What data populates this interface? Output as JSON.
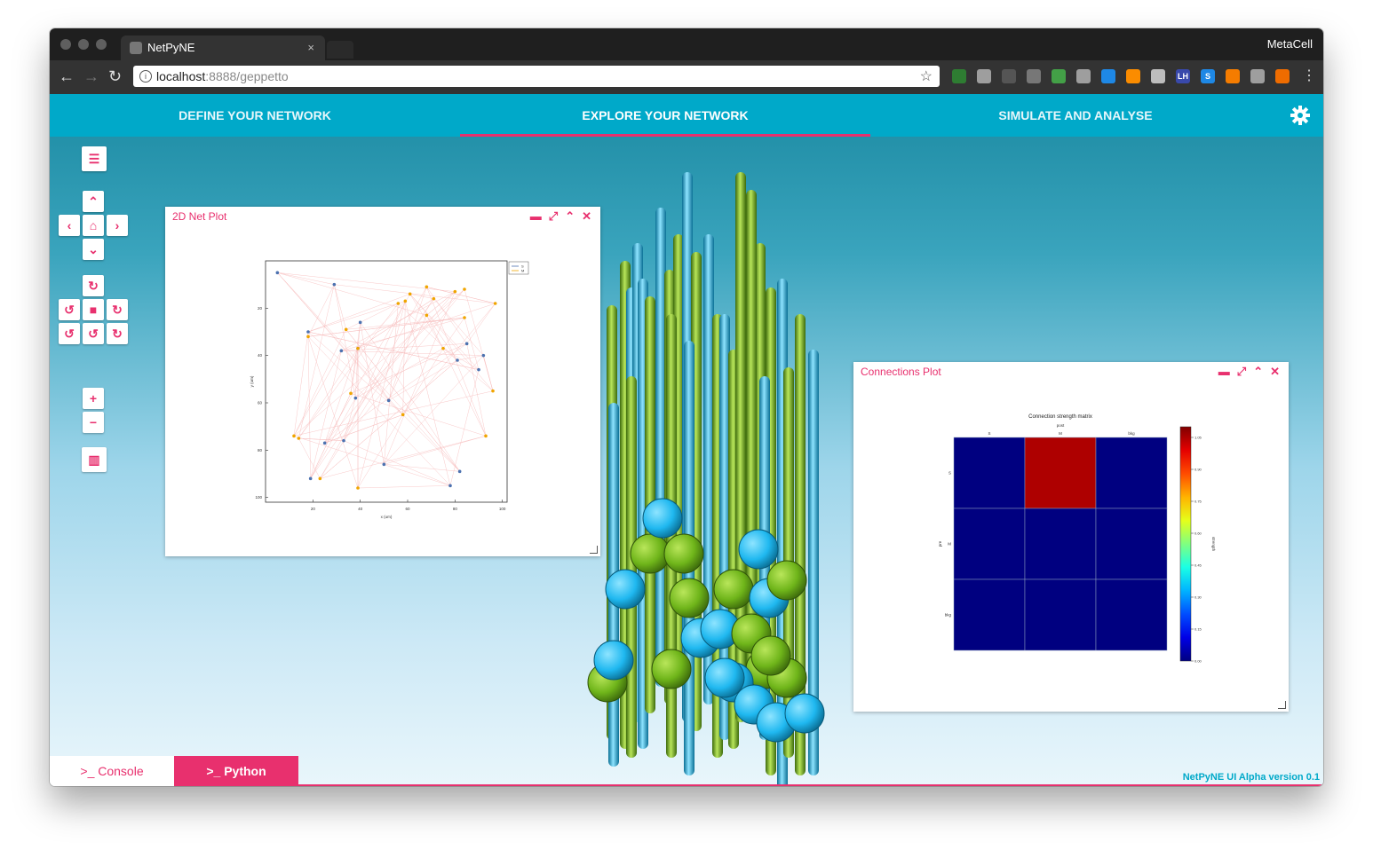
{
  "browser": {
    "tab_title": "NetPyNE",
    "tab_close": "×",
    "profile": "MetaCell",
    "url_host": "localhost",
    "url_path": ":8888/geppetto",
    "extensions": [
      {
        "icon": "extension-icon",
        "color": "#2e7d32",
        "text": ""
      },
      {
        "icon": "extension-icon",
        "color": "#9e9e9e",
        "text": ""
      },
      {
        "icon": "pocket-icon",
        "color": "#555555",
        "text": ""
      },
      {
        "icon": "extension-icon",
        "color": "#777777",
        "text": ""
      },
      {
        "icon": "extension-icon",
        "color": "#43a047",
        "text": ""
      },
      {
        "icon": "extension-icon",
        "color": "#9e9e9e",
        "text": ""
      },
      {
        "icon": "trello-icon",
        "color": "#1e88e5",
        "text": ""
      },
      {
        "icon": "hubspot-icon",
        "color": "#fb8c00",
        "text": ""
      },
      {
        "icon": "extension-icon",
        "color": "#bdbdbd",
        "text": ""
      },
      {
        "icon": "lighthouse-icon",
        "color": "#3949ab",
        "text": "LH"
      },
      {
        "icon": "s-icon",
        "color": "#1e88e5",
        "text": "S"
      },
      {
        "icon": "metamask-icon",
        "color": "#f57c00",
        "text": ""
      },
      {
        "icon": "bolt-icon",
        "color": "#9e9e9e",
        "text": ""
      },
      {
        "icon": "firefox-icon",
        "color": "#ef6c00",
        "text": ""
      }
    ]
  },
  "nav": {
    "tabs": [
      "DEFINE YOUR NETWORK",
      "EXPLORE YOUR NETWORK",
      "SIMULATE AND ANALYSE"
    ],
    "active_index": 1
  },
  "controls": {
    "list": "☰",
    "up": "⌃",
    "left": "‹",
    "home": "⌂",
    "right": "›",
    "down": "⌄",
    "reset_rotation": "↻",
    "rotate_left": "↺",
    "camera": "■",
    "rotate_right": "↻",
    "rotate_left2": "↺",
    "rotate_down": "↺",
    "rotate_right2": "↻",
    "zoom_in": "+",
    "zoom_out": "−",
    "chart": "▥"
  },
  "panels": {
    "net_plot": {
      "title": "2D Net Plot",
      "window_icons": [
        "▬",
        "⤢",
        "⌃",
        "✕"
      ],
      "chart_data": {
        "type": "scatter",
        "title": "",
        "xlabel": "x (um)",
        "ylabel": "y (um)",
        "xticks": [
          "20",
          "40",
          "60",
          "80",
          "100"
        ],
        "yticks": [
          "20",
          "40",
          "60",
          "80",
          "100"
        ],
        "xlim": [
          0,
          102
        ],
        "ylim": [
          0,
          102
        ],
        "legend": {
          "position": "top-right",
          "entries": [
            "S",
            "M"
          ]
        },
        "series": [
          {
            "name": "S",
            "color": "#4c72b0",
            "points": [
              [
                5,
                5
              ],
              [
                29,
                10
              ],
              [
                18,
                30
              ],
              [
                40,
                26
              ],
              [
                39,
                37
              ],
              [
                32,
                38
              ],
              [
                85,
                35
              ],
              [
                90,
                46
              ],
              [
                81,
                42
              ],
              [
                92,
                40
              ],
              [
                38,
                58
              ],
              [
                52,
                59
              ],
              [
                33,
                76
              ],
              [
                25,
                77
              ],
              [
                82,
                89
              ],
              [
                78,
                95
              ],
              [
                50,
                86
              ],
              [
                19,
                92
              ]
            ]
          },
          {
            "name": "M",
            "color": "#f0a500",
            "points": [
              [
                18,
                32
              ],
              [
                68,
                11
              ],
              [
                61,
                14
              ],
              [
                71,
                16
              ],
              [
                80,
                13
              ],
              [
                84,
                12
              ],
              [
                97,
                18
              ],
              [
                56,
                18
              ],
              [
                59,
                17
              ],
              [
                68,
                23
              ],
              [
                84,
                24
              ],
              [
                34,
                29
              ],
              [
                39,
                37
              ],
              [
                75,
                37
              ],
              [
                36,
                56
              ],
              [
                58,
                65
              ],
              [
                96,
                55
              ],
              [
                93,
                74
              ],
              [
                12,
                74
              ],
              [
                14,
                75
              ],
              [
                23,
                92
              ],
              [
                39,
                96
              ]
            ]
          }
        ]
      }
    },
    "connections_plot": {
      "title": "Connections Plot",
      "window_icons": [
        "▬",
        "⤢",
        "⌃",
        "✕"
      ],
      "chart_data": {
        "type": "heatmap",
        "title": "Connection strength matrix",
        "xlabel": "post",
        "ylabel": "pre",
        "x_categories": [
          "S",
          "M",
          "bkg"
        ],
        "y_categories": [
          "S",
          "M",
          "bkg"
        ],
        "values": [
          [
            0.0,
            1.05,
            0.0
          ],
          [
            0.0,
            0.0,
            0.0
          ],
          [
            0.0,
            0.0,
            0.0
          ]
        ],
        "colorbar_label": "strength",
        "colorbar_ticks": [
          "1.05",
          "0.90",
          "0.75",
          "0.60",
          "0.45",
          "0.30",
          "0.15",
          "0.00"
        ],
        "vmin": 0.0,
        "vmax": 1.1
      }
    }
  },
  "bottom": {
    "console_label": ">_ Console",
    "python_label": ">_ Python",
    "version": "NetPyNE UI Alpha version 0.1"
  },
  "colors": {
    "accent": "#e8306e",
    "nav": "#00a9c9",
    "soma_blue": "#1fb8f0",
    "soma_green": "#6fb51a"
  }
}
